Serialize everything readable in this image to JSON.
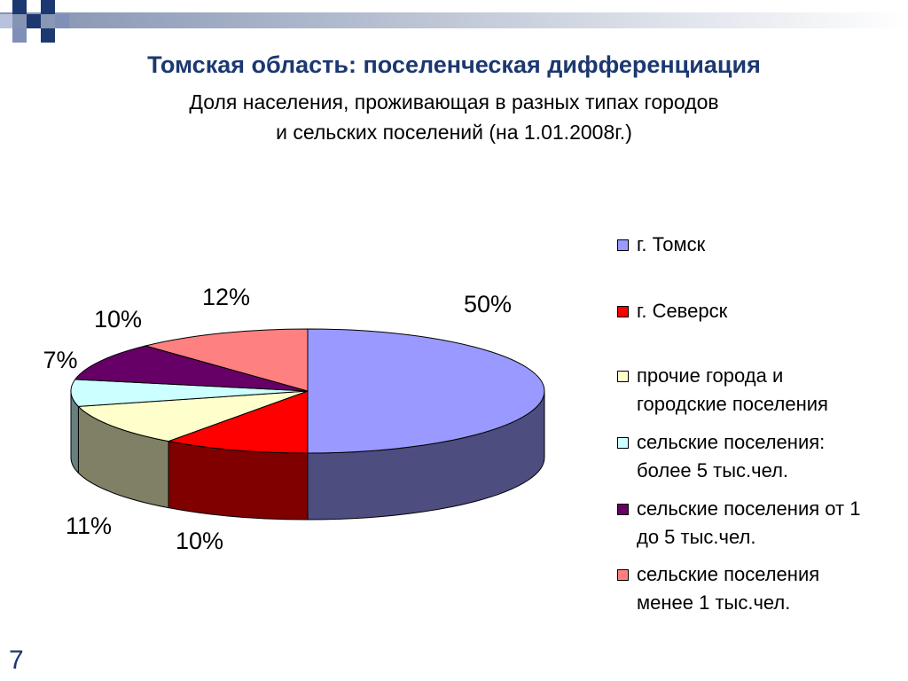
{
  "chart_data": {
    "type": "pie3d",
    "title": "Томская область: поселенческая дифференциация",
    "subtitle": [
      "Доля населения, проживающая в разных типах городов",
      "и сельских поселений (на 1.01.2008г.)"
    ],
    "categories": [
      "г. Томск",
      "г. Северск",
      "прочие города и городские поселения",
      "сельские поселения: более 5 тыс.чел.",
      "сельские поселения от 1 до 5 тыс.чел.",
      "сельские поселения менее 1 тыс.чел."
    ],
    "values": [
      50,
      10,
      11,
      7,
      10,
      12
    ],
    "value_labels": [
      "50%",
      "10%",
      "11%",
      "7%",
      "10%",
      "12%"
    ],
    "colors": [
      "#9999ff",
      "#ff0000",
      "#ffffcc",
      "#ccffff",
      "#660066",
      "#ff8080"
    ],
    "legend": "right"
  },
  "page_number": "7"
}
